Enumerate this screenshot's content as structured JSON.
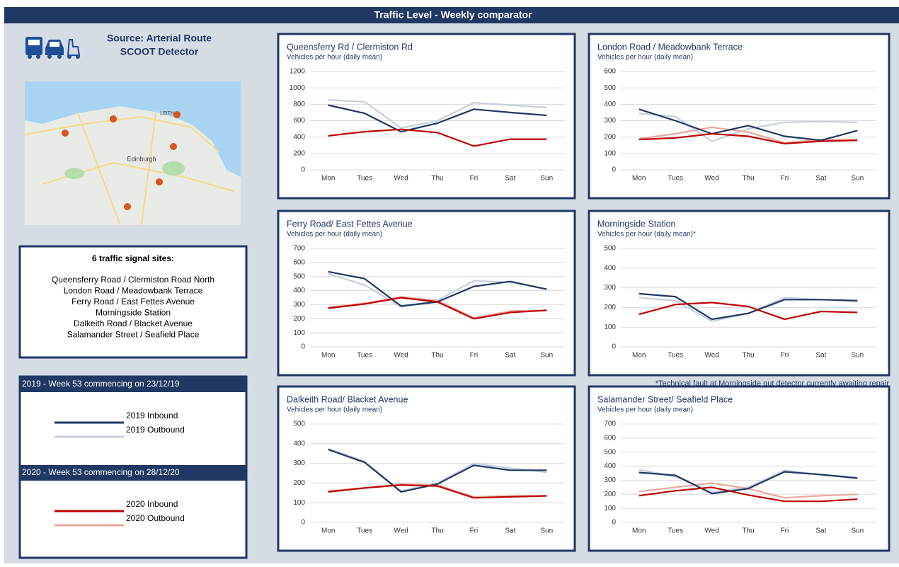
{
  "header": {
    "title": "Traffic Level - Weekly comparator"
  },
  "source": {
    "line1": "Source: Arterial Route",
    "line2": "SCOOT Detector"
  },
  "map": {
    "labels": [
      "Edinburgh",
      "LEITH"
    ]
  },
  "sites": {
    "title": "6 traffic signal sites:",
    "items": [
      "Queensferry Road / Clermiston Road North",
      "London Road / Meadowbank Terrace",
      "Ferry Road / East Fettes Avenue",
      "Morningside Station",
      "Dalkeith Road / Blacket Avenue",
      "Salamander Street / Seafield Place"
    ]
  },
  "legend": {
    "groups": [
      {
        "title": "2019 - Week 53 commencing on 23/12/19",
        "items": [
          {
            "name": "2019 Inbound",
            "color": "#1f3864"
          },
          {
            "name": "2019 Outbound",
            "color": "#c5cedb"
          }
        ]
      },
      {
        "title": "2020 - Week 53 commencing on 28/12/20",
        "items": [
          {
            "name": "2020 Inbound",
            "color": "#c00000"
          },
          {
            "name": "2020 Outbound",
            "color": "#eaa89c"
          }
        ]
      }
    ]
  },
  "chart_data": [
    {
      "type": "line",
      "title": "Queensferry Rd / Clermiston Rd",
      "subtitle": "Vehicles per hour (daily mean)",
      "categories": [
        "Mon",
        "Tues",
        "Wed",
        "Thu",
        "Fri",
        "Sat",
        "Sun"
      ],
      "ylim": [
        0,
        1200
      ],
      "yticks": [
        0,
        200,
        400,
        600,
        800,
        1000,
        1200
      ],
      "grid": true,
      "series": [
        {
          "values": [
            790,
            690,
            465,
            570,
            740,
            700,
            665
          ]
        },
        {
          "values": [
            855,
            830,
            510,
            600,
            820,
            790,
            760
          ]
        },
        {
          "values": [
            415,
            465,
            495,
            455,
            290,
            375,
            375
          ]
        },
        {
          "values": [
            null,
            null,
            null,
            null,
            null,
            null,
            null
          ]
        }
      ]
    },
    {
      "type": "line",
      "title": "London Road / Meadowbank Terrace",
      "subtitle": "Vehicles per hour (daily mean)",
      "categories": [
        "Mon",
        "Tues",
        "Wed",
        "Thu",
        "Fri",
        "Sat",
        "Sun"
      ],
      "ylim": [
        0,
        600
      ],
      "yticks": [
        0,
        100,
        200,
        300,
        400,
        500,
        600
      ],
      "grid": true,
      "series": [
        {
          "values": [
            370,
            300,
            220,
            270,
            205,
            180,
            240
          ]
        },
        {
          "values": [
            345,
            325,
            175,
            250,
            290,
            295,
            290
          ]
        },
        {
          "values": [
            185,
            195,
            220,
            205,
            160,
            175,
            180
          ]
        },
        {
          "values": [
            190,
            220,
            260,
            230,
            165,
            185,
            185
          ]
        }
      ]
    },
    {
      "type": "line",
      "title": "Ferry Road/ East Fettes Avenue",
      "subtitle": "Vehicles per hour (daily mean)",
      "categories": [
        "Mon",
        "Tues",
        "Wed",
        "Thu",
        "Fri",
        "Sat",
        "Sun"
      ],
      "ylim": [
        0,
        700
      ],
      "yticks": [
        0,
        100,
        200,
        300,
        400,
        500,
        600,
        700
      ],
      "grid": true,
      "series": [
        {
          "values": [
            535,
            485,
            290,
            320,
            430,
            465,
            410
          ]
        },
        {
          "values": [
            520,
            440,
            285,
            330,
            470,
            460,
            410
          ]
        },
        {
          "values": [
            275,
            305,
            350,
            320,
            200,
            245,
            260
          ]
        },
        {
          "values": [
            280,
            310,
            355,
            330,
            205,
            255,
            260
          ]
        }
      ]
    },
    {
      "type": "line",
      "title": "Morningside Station",
      "subtitle": "Vehicles per hour (daily mean)*",
      "note": "*Technical fault at Morningside out detector currently awaiting repair",
      "categories": [
        "Mon",
        "Tues",
        "Wed",
        "Thu",
        "Fri",
        "Sat",
        "Sun"
      ],
      "ylim": [
        0,
        500
      ],
      "yticks": [
        0,
        100,
        200,
        300,
        400,
        500
      ],
      "grid": true,
      "series": [
        {
          "values": [
            270,
            255,
            140,
            170,
            240,
            240,
            235
          ]
        },
        {
          "values": [
            250,
            235,
            130,
            170,
            250,
            240,
            230
          ]
        },
        {
          "values": [
            165,
            215,
            225,
            205,
            140,
            180,
            175
          ]
        },
        {
          "values": [
            null,
            null,
            null,
            null,
            null,
            null,
            null
          ]
        }
      ]
    },
    {
      "type": "line",
      "title": "Dalkeith Road/ Blacket Avenue",
      "subtitle": "Vehicles per hour (daily mean)",
      "categories": [
        "Mon",
        "Tues",
        "Wed",
        "Thu",
        "Fri",
        "Sat",
        "Sun"
      ],
      "ylim": [
        0,
        500
      ],
      "yticks": [
        0,
        100,
        200,
        300,
        400,
        500
      ],
      "grid": true,
      "series": [
        {
          "values": [
            370,
            305,
            155,
            195,
            290,
            265,
            265
          ]
        },
        {
          "values": [
            375,
            310,
            160,
            200,
            300,
            275,
            255
          ]
        },
        {
          "values": [
            155,
            175,
            190,
            185,
            125,
            130,
            135
          ]
        },
        {
          "values": [
            160,
            175,
            195,
            190,
            130,
            135,
            135
          ]
        }
      ]
    },
    {
      "type": "line",
      "title": "Salamander Street/ Seafield Place",
      "subtitle": "Vehicles per hour (daily mean)",
      "categories": [
        "Mon",
        "Tues",
        "Wed",
        "Thu",
        "Fri",
        "Sat",
        "Sun"
      ],
      "ylim": [
        0,
        700
      ],
      "yticks": [
        0,
        100,
        200,
        300,
        400,
        500,
        600,
        700
      ],
      "grid": true,
      "series": [
        {
          "values": [
            355,
            335,
            205,
            240,
            360,
            340,
            315
          ]
        },
        {
          "values": [
            375,
            325,
            215,
            250,
            370,
            340,
            320
          ]
        },
        {
          "values": [
            190,
            225,
            250,
            195,
            150,
            150,
            165
          ]
        },
        {
          "values": [
            220,
            250,
            280,
            240,
            175,
            190,
            200
          ]
        }
      ]
    }
  ]
}
